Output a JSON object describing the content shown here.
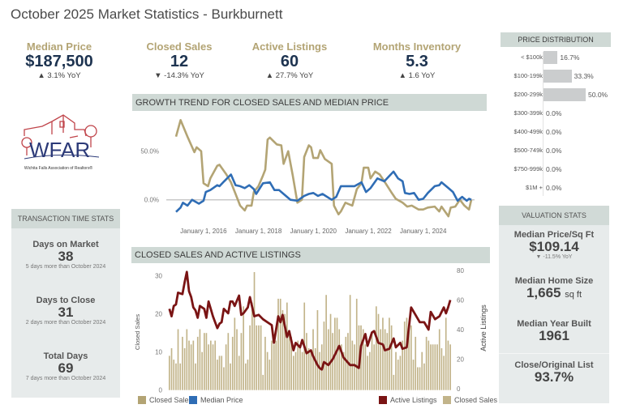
{
  "title": "October 2025 Market Statistics - Burkburnett",
  "colors": {
    "tan": "#b3a474",
    "navy": "#1d3350",
    "blue": "#2f6db5",
    "maroon": "#7a1414",
    "bar": "#c2b48a"
  },
  "kpis": [
    {
      "label": "Median Price",
      "value": "$187,500",
      "change": "▲ 3.1% YoY"
    },
    {
      "label": "Closed Sales",
      "value": "12",
      "change": "▼ -14.3% YoY"
    },
    {
      "label": "Active Listings",
      "value": "60",
      "change": "▲ 27.7% YoY"
    },
    {
      "label": "Months Inventory",
      "value": "5.3",
      "change": "▲ 1.6 YoY"
    }
  ],
  "logo": {
    "text": "WFAR",
    "caption": "Wichita Falls Association of Realtors®"
  },
  "transaction_stats": {
    "header": "TRANSACTION TIME STATS",
    "items": [
      {
        "label": "Days on Market",
        "value": "38",
        "note": "5 days more than October 2024"
      },
      {
        "label": "Days to Close",
        "value": "31",
        "note": "2 days more than October 2024"
      },
      {
        "label": "Total Days",
        "value": "69",
        "note": "7 days more than October 2024"
      }
    ]
  },
  "price_distribution": {
    "header": "PRICE DISTRIBUTION",
    "rows": [
      {
        "label": "< $100k",
        "value": 16.7,
        "text": "16.7%"
      },
      {
        "label": "$100-199k",
        "value": 33.3,
        "text": "33.3%"
      },
      {
        "label": "$200-299k",
        "value": 50.0,
        "text": "50.0%"
      },
      {
        "label": "$300-399k",
        "value": 0,
        "text": "0.0%"
      },
      {
        "label": "$400-499k",
        "value": 0,
        "text": "0.0%"
      },
      {
        "label": "$500-749k",
        "value": 0,
        "text": "0.0%"
      },
      {
        "label": "$750-999k",
        "value": 0,
        "text": "0.0%"
      },
      {
        "label": "$1M +",
        "value": 0,
        "text": "0.0%"
      }
    ]
  },
  "valuation_stats": {
    "header": "VALUATION STATS",
    "items": [
      {
        "label": "Median Price/Sq Ft",
        "value": "$109.14",
        "note": "▼ -11.5% YoY"
      },
      {
        "label": "Median Home Size",
        "value": "1,665",
        "unit": "sq ft"
      },
      {
        "label": "Median Year Built",
        "value": "1961"
      },
      {
        "label": "Close/Original List",
        "value": "93.7%"
      }
    ]
  },
  "chart_data": [
    {
      "type": "line",
      "title": "GROWTH TREND FOR CLOSED SALES AND MEDIAN PRICE",
      "y_ticks": [
        "0.0%",
        "50.0%"
      ],
      "x_ticks": [
        "January 1, 2016",
        "January 1, 2018",
        "January 1, 2020",
        "January 1, 2022",
        "January 1, 2024"
      ],
      "ylim": [
        -20,
        85
      ],
      "zero_line": true,
      "series": [
        {
          "name": "Closed Sales",
          "color": "#b3a474",
          "points": [
            [
              "2015-01",
              65
            ],
            [
              "2015-03",
              82
            ],
            [
              "2015-06",
              65
            ],
            [
              "2015-09",
              49
            ],
            [
              "2015-10",
              54
            ],
            [
              "2015-12",
              50
            ],
            [
              "2016-01",
              17
            ],
            [
              "2016-03",
              14
            ],
            [
              "2016-04",
              22
            ],
            [
              "2016-07",
              35
            ],
            [
              "2016-08",
              36
            ],
            [
              "2016-11",
              26
            ],
            [
              "2017-01",
              18
            ],
            [
              "2017-03",
              6
            ],
            [
              "2017-05",
              -6
            ],
            [
              "2017-07",
              -11
            ],
            [
              "2017-08",
              -6
            ],
            [
              "2017-10",
              -6
            ],
            [
              "2017-11",
              8
            ],
            [
              "2018-01",
              14
            ],
            [
              "2018-03",
              25
            ],
            [
              "2018-04",
              31
            ],
            [
              "2018-05",
              62
            ],
            [
              "2018-06",
              64
            ],
            [
              "2018-09",
              57
            ],
            [
              "2018-11",
              56
            ],
            [
              "2018-12",
              37
            ],
            [
              "2019-02",
              50
            ],
            [
              "2019-04",
              25
            ],
            [
              "2019-06",
              -3
            ],
            [
              "2019-08",
              0
            ],
            [
              "2019-09",
              44
            ],
            [
              "2019-11",
              56
            ],
            [
              "2019-12",
              54
            ],
            [
              "2020-01",
              43
            ],
            [
              "2020-03",
              43
            ],
            [
              "2020-04",
              51
            ],
            [
              "2020-06",
              42
            ],
            [
              "2020-09",
              37
            ],
            [
              "2020-10",
              -6
            ],
            [
              "2020-12",
              -15
            ],
            [
              "2021-01",
              -12
            ],
            [
              "2021-03",
              -3
            ],
            [
              "2021-06",
              -6
            ],
            [
              "2021-08",
              11
            ],
            [
              "2021-10",
              17
            ],
            [
              "2021-11",
              33
            ],
            [
              "2022-01",
              33
            ],
            [
              "2022-02",
              22
            ],
            [
              "2022-04",
              29
            ],
            [
              "2022-06",
              26
            ],
            [
              "2022-08",
              19
            ],
            [
              "2022-11",
              8
            ],
            [
              "2023-01",
              1
            ],
            [
              "2023-04",
              -3
            ],
            [
              "2023-06",
              -7
            ],
            [
              "2023-08",
              -6
            ],
            [
              "2023-11",
              -10
            ],
            [
              "2024-01",
              -10
            ],
            [
              "2024-03",
              -8
            ],
            [
              "2024-06",
              -7
            ],
            [
              "2024-08",
              -12
            ],
            [
              "2024-09",
              -7
            ],
            [
              "2024-12",
              -17
            ],
            [
              "2025-01",
              -8
            ],
            [
              "2025-03",
              -7
            ],
            [
              "2025-05",
              0
            ],
            [
              "2025-07",
              -6
            ],
            [
              "2025-09",
              -10
            ],
            [
              "2025-10",
              0
            ]
          ]
        },
        {
          "name": "Median Price",
          "color": "#2f6db5",
          "points": [
            [
              "2015-01",
              -12.5
            ],
            [
              "2015-03",
              -8
            ],
            [
              "2015-04",
              -3
            ],
            [
              "2015-06",
              -6
            ],
            [
              "2015-08",
              0
            ],
            [
              "2015-11",
              -4
            ],
            [
              "2016-01",
              -1
            ],
            [
              "2016-02",
              8
            ],
            [
              "2016-04",
              10
            ],
            [
              "2016-07",
              15
            ],
            [
              "2016-08",
              14
            ],
            [
              "2016-10",
              19
            ],
            [
              "2017-01",
              26
            ],
            [
              "2017-03",
              15
            ],
            [
              "2017-05",
              14
            ],
            [
              "2017-07",
              12
            ],
            [
              "2017-09",
              15
            ],
            [
              "2017-11",
              11
            ],
            [
              "2017-12",
              6
            ],
            [
              "2018-03",
              17
            ],
            [
              "2018-06",
              18
            ],
            [
              "2018-08",
              10
            ],
            [
              "2018-10",
              10
            ],
            [
              "2018-12",
              6
            ],
            [
              "2019-03",
              0
            ],
            [
              "2019-06",
              -1
            ],
            [
              "2019-09",
              4
            ],
            [
              "2019-11",
              6
            ],
            [
              "2020-01",
              7
            ],
            [
              "2020-03",
              4
            ],
            [
              "2020-05",
              6
            ],
            [
              "2020-09",
              0
            ],
            [
              "2020-11",
              3
            ],
            [
              "2021-01",
              14
            ],
            [
              "2021-04",
              14
            ],
            [
              "2021-07",
              14
            ],
            [
              "2021-10",
              18
            ],
            [
              "2021-12",
              8
            ],
            [
              "2022-02",
              12
            ],
            [
              "2022-05",
              22
            ],
            [
              "2022-08",
              19
            ],
            [
              "2022-10",
              24
            ],
            [
              "2022-12",
              29
            ],
            [
              "2023-02",
              22
            ],
            [
              "2023-04",
              19
            ],
            [
              "2023-05",
              7
            ],
            [
              "2023-07",
              6
            ],
            [
              "2023-09",
              7
            ],
            [
              "2023-11",
              0
            ],
            [
              "2024-01",
              1
            ],
            [
              "2024-03",
              7
            ],
            [
              "2024-06",
              14
            ],
            [
              "2024-08",
              15
            ],
            [
              "2024-09",
              18
            ],
            [
              "2024-12",
              12
            ],
            [
              "2025-02",
              8
            ],
            [
              "2025-04",
              -1
            ],
            [
              "2025-06",
              3
            ],
            [
              "2025-08",
              -1
            ],
            [
              "2025-09",
              1
            ],
            [
              "2025-10",
              0
            ]
          ]
        }
      ],
      "legend": [
        {
          "name": "Closed Sales",
          "color": "#b3a474"
        },
        {
          "name": "Median Price",
          "color": "#2f6db5"
        }
      ]
    },
    {
      "type": "bar+line",
      "title": "CLOSED SALES AND ACTIVE LISTINGS",
      "ylabel_left": "Closed Sales",
      "ylabel_right": "Active Listings",
      "y_left_ticks": [
        "0",
        "10",
        "20",
        "30"
      ],
      "y_right_ticks": [
        "0",
        "20",
        "40",
        "60",
        "80"
      ],
      "ylim_left": [
        0,
        31.5
      ],
      "ylim_right": [
        0,
        80
      ],
      "x_range": [
        "2015-01",
        "2025-10"
      ],
      "closed_sales": [
        9,
        11,
        8,
        7,
        16,
        7,
        14,
        11,
        16,
        13,
        12,
        13,
        7,
        14,
        16,
        10,
        15,
        15,
        12,
        13,
        12,
        13,
        8,
        9,
        9,
        6,
        12,
        15,
        7,
        14,
        19,
        16,
        9,
        15,
        22,
        7,
        8,
        17,
        23,
        31,
        17,
        17,
        17,
        4,
        14,
        10,
        8,
        13,
        12,
        13,
        24,
        24,
        21,
        20,
        23,
        15,
        14,
        9,
        10,
        13,
        11,
        10,
        23,
        15,
        11,
        10,
        16,
        11,
        21,
        10,
        12,
        18,
        25,
        16,
        20,
        15,
        19,
        19,
        16,
        12,
        10,
        14,
        15,
        25,
        13,
        12,
        24,
        17,
        17,
        16,
        12,
        9,
        10,
        15,
        12,
        22,
        20,
        16,
        19,
        16,
        15,
        19,
        17,
        4,
        10,
        8,
        9,
        13,
        18,
        19,
        17,
        17,
        8,
        14,
        6,
        6,
        10,
        7,
        14,
        13,
        12,
        12,
        12,
        12,
        16,
        11,
        9,
        19,
        13,
        12
      ],
      "active_listings": [
        [
          "2015-01",
          54
        ],
        [
          "2015-02",
          49
        ],
        [
          "2015-03",
          56
        ],
        [
          "2015-04",
          57
        ],
        [
          "2015-05",
          65
        ],
        [
          "2015-07",
          64
        ],
        [
          "2015-08",
          72
        ],
        [
          "2015-09",
          79
        ],
        [
          "2015-10",
          66
        ],
        [
          "2015-11",
          62
        ],
        [
          "2015-12",
          55
        ],
        [
          "2016-01",
          53
        ],
        [
          "2016-02",
          48
        ],
        [
          "2016-03",
          56
        ],
        [
          "2016-05",
          54
        ],
        [
          "2016-06",
          48
        ],
        [
          "2016-07",
          59
        ],
        [
          "2016-08",
          54
        ],
        [
          "2016-09",
          49
        ],
        [
          "2016-11",
          41
        ],
        [
          "2016-12",
          44
        ],
        [
          "2017-01",
          45
        ],
        [
          "2017-02",
          54
        ],
        [
          "2017-04",
          51
        ],
        [
          "2017-05",
          59
        ],
        [
          "2017-06",
          59
        ],
        [
          "2017-07",
          56
        ],
        [
          "2017-09",
          63
        ],
        [
          "2017-10",
          50
        ],
        [
          "2017-11",
          51
        ],
        [
          "2018-01",
          55
        ],
        [
          "2018-02",
          62
        ],
        [
          "2018-04",
          49
        ],
        [
          "2018-06",
          50
        ],
        [
          "2018-08",
          47
        ],
        [
          "2018-10",
          45
        ],
        [
          "2018-12",
          43
        ],
        [
          "2019-01",
          31
        ],
        [
          "2019-03",
          49
        ],
        [
          "2019-04",
          45
        ],
        [
          "2019-05",
          50
        ],
        [
          "2019-07",
          35
        ],
        [
          "2019-08",
          39
        ],
        [
          "2019-10",
          26
        ],
        [
          "2019-11",
          31
        ],
        [
          "2020-01",
          28
        ],
        [
          "2020-02",
          33
        ],
        [
          "2020-04",
          24
        ],
        [
          "2020-06",
          26
        ],
        [
          "2020-07",
          22
        ],
        [
          "2020-09",
          16
        ],
        [
          "2020-10",
          14
        ],
        [
          "2020-11",
          13
        ],
        [
          "2020-12",
          18
        ],
        [
          "2021-02",
          16
        ],
        [
          "2021-04",
          20
        ],
        [
          "2021-07",
          29
        ],
        [
          "2021-09",
          21
        ],
        [
          "2021-12",
          16
        ],
        [
          "2022-02",
          16
        ],
        [
          "2022-04",
          14
        ],
        [
          "2022-05",
          29
        ],
        [
          "2022-07",
          37
        ],
        [
          "2022-08",
          29
        ],
        [
          "2022-10",
          38
        ],
        [
          "2022-11",
          39
        ],
        [
          "2023-01",
          31
        ],
        [
          "2023-03",
          30
        ],
        [
          "2023-04",
          26
        ],
        [
          "2023-06",
          27
        ],
        [
          "2023-08",
          34
        ],
        [
          "2023-09",
          28
        ],
        [
          "2023-11",
          31
        ],
        [
          "2023-12",
          27
        ],
        [
          "2024-02",
          28
        ],
        [
          "2024-04",
          55
        ],
        [
          "2024-06",
          50
        ],
        [
          "2024-08",
          45
        ],
        [
          "2024-10",
          45
        ],
        [
          "2024-12",
          40
        ],
        [
          "2025-01",
          52
        ],
        [
          "2025-03",
          47
        ],
        [
          "2025-05",
          49
        ],
        [
          "2025-07",
          55
        ],
        [
          "2025-08",
          51
        ],
        [
          "2025-09",
          55
        ],
        [
          "2025-10",
          60
        ]
      ],
      "legend": [
        {
          "name": "Active Listings",
          "color": "#7a1414"
        },
        {
          "name": "Closed Sales",
          "color": "#c2b48a"
        }
      ]
    }
  ]
}
